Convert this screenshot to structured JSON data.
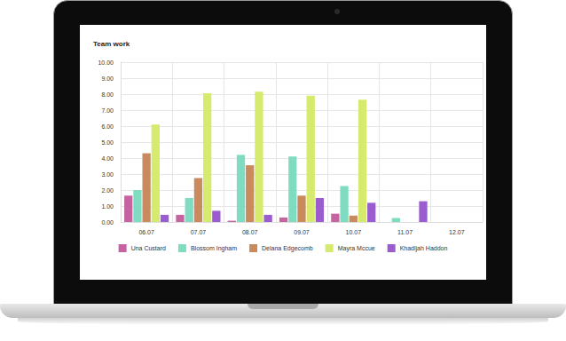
{
  "chart_data": {
    "type": "bar",
    "title": "Team work",
    "categories": [
      "06.07",
      "07.07",
      "08.07",
      "09.07",
      "10.07",
      "11.07",
      "12.07"
    ],
    "series": [
      {
        "name": "Una Custard",
        "color": "#c564a0",
        "values": [
          1.65,
          0.45,
          0.08,
          0.28,
          0.52,
          null,
          null
        ]
      },
      {
        "name": "Blossom Ingham",
        "color": "#7fdcc0",
        "values": [
          2.0,
          1.5,
          4.2,
          4.1,
          2.25,
          0.25,
          null
        ]
      },
      {
        "name": "Delana Edgecomb",
        "color": "#c98a5e",
        "values": [
          4.3,
          2.75,
          3.55,
          1.65,
          0.4,
          null,
          null
        ]
      },
      {
        "name": "Mayra Mccue",
        "color": "#d6ea6e",
        "values": [
          6.1,
          8.05,
          8.15,
          7.9,
          7.65,
          null,
          null
        ]
      },
      {
        "name": "Khadijah Haddon",
        "color": "#9a5ccf",
        "values": [
          0.45,
          0.7,
          0.45,
          1.5,
          1.2,
          1.3,
          null
        ]
      }
    ],
    "ylim": [
      0,
      10
    ],
    "yticks": [
      {
        "value": 0,
        "label": "0.00"
      },
      {
        "value": 1,
        "label": "1.00"
      },
      {
        "value": 2,
        "label": "2.00"
      },
      {
        "value": 3,
        "label": "3.00"
      },
      {
        "value": 4,
        "label": "4.00"
      },
      {
        "value": 5,
        "label": "5.00"
      },
      {
        "value": 6,
        "label": "6.00"
      },
      {
        "value": 7,
        "label": "7.00"
      },
      {
        "value": 8,
        "label": "8.00"
      },
      {
        "value": 9,
        "label": "9.00"
      },
      {
        "value": 10,
        "label": "10.00"
      }
    ],
    "grid": true,
    "legend": "bottom"
  }
}
